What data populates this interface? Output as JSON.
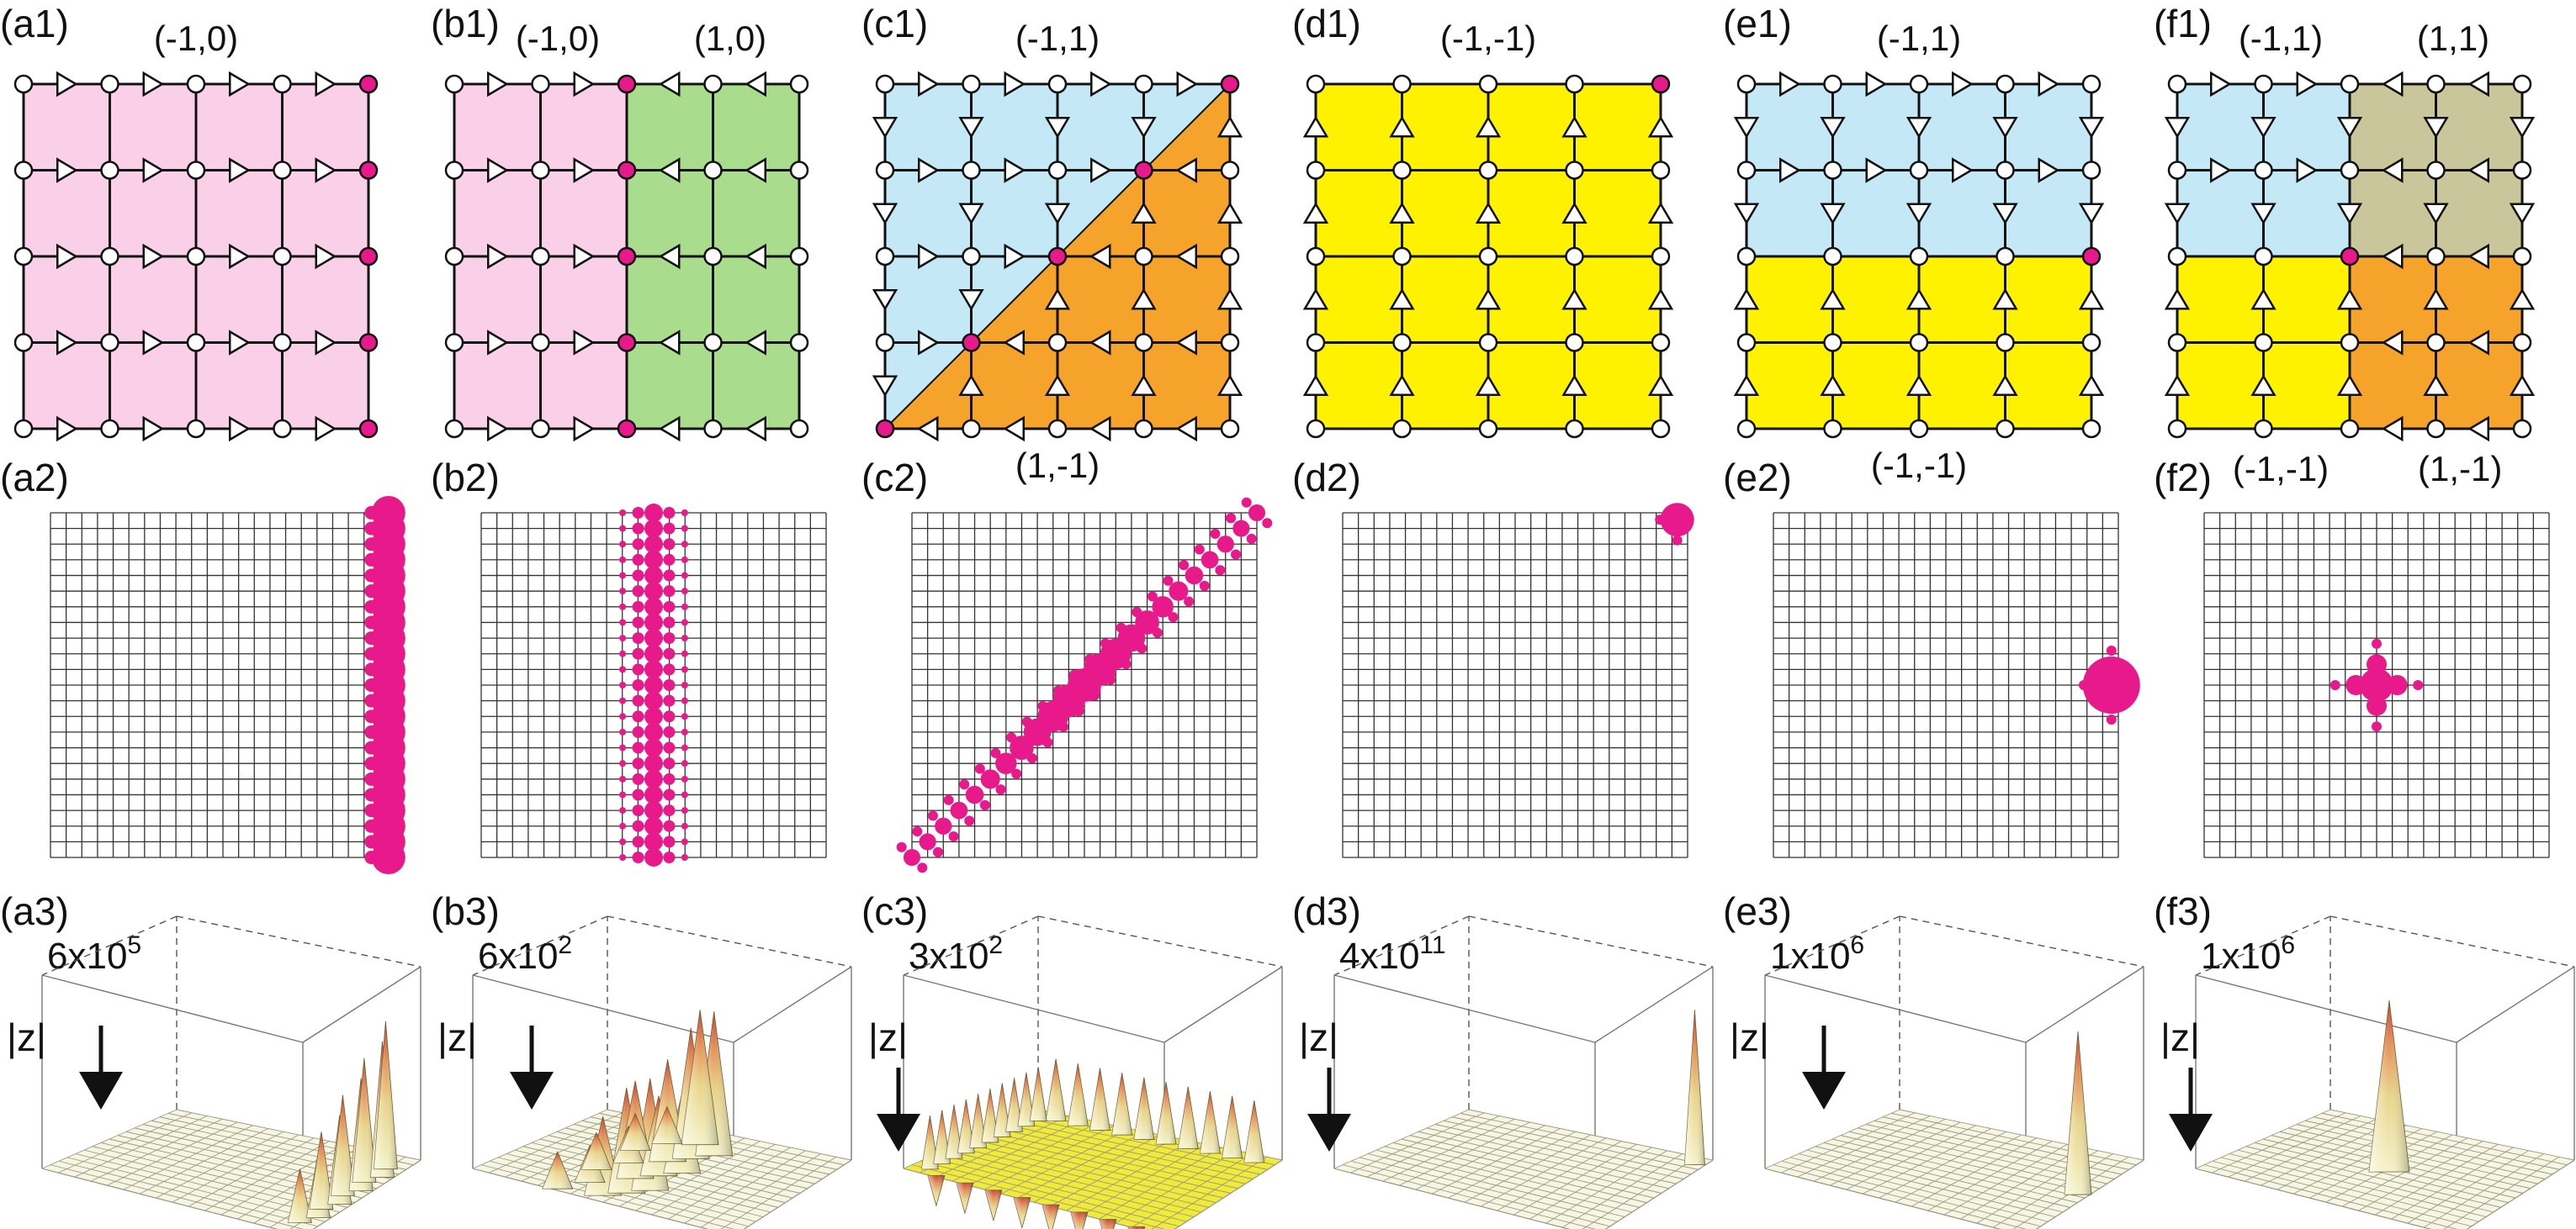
{
  "figure": {
    "columns": [
      {
        "id": "a",
        "row1": {
          "label": "(a1)",
          "regions": [
            {
              "label": "(-1,0)",
              "color": "#f9d0e8",
              "shape": "full",
              "label_pos": "top-center"
            }
          ],
          "flow": "right"
        },
        "row2": {
          "label": "(a2)",
          "state": "edge-right"
        },
        "row3": {
          "label": "(a3)",
          "magnitude": "6x10",
          "magnitude_exp": "5",
          "axis": "|z|",
          "surface": "ridge-right"
        }
      },
      {
        "id": "b",
        "row1": {
          "label": "(b1)",
          "regions": [
            {
              "label": "(-1,0)",
              "color": "#f9d0e8",
              "shape": "left-half",
              "label_pos": "top-left"
            },
            {
              "label": "(1,0)",
              "color": "#a9dc8c",
              "shape": "right-half",
              "label_pos": "top-right"
            }
          ],
          "flow": "split-vertical"
        },
        "row2": {
          "label": "(b2)",
          "state": "interface-vertical"
        },
        "row3": {
          "label": "(b3)",
          "magnitude": "6x10",
          "magnitude_exp": "2",
          "axis": "|z|",
          "surface": "ridge-middle"
        }
      },
      {
        "id": "c",
        "row1": {
          "label": "(c1)",
          "regions": [
            {
              "label": "(-1,1)",
              "color": "#c4e8f5",
              "shape": "upper-left-triangle",
              "label_pos": "top-center"
            },
            {
              "label": "(1,-1)",
              "color": "#f5a32a",
              "shape": "lower-right-triangle",
              "label_pos": "bottom-center"
            }
          ],
          "flow": "split-diagonal"
        },
        "row2": {
          "label": "(c2)",
          "state": "interface-diagonal"
        },
        "row3": {
          "label": "(c3)",
          "magnitude": "3x10",
          "magnitude_exp": "2",
          "axis": "|z|",
          "surface": "plateau-spiky"
        }
      },
      {
        "id": "d",
        "row1": {
          "label": "(d1)",
          "regions": [
            {
              "label": "(-1,-1)",
              "color": "#fff200",
              "shape": "full",
              "label_pos": "top-center"
            }
          ],
          "flow": "up"
        },
        "row2": {
          "label": "(d2)",
          "state": "corner"
        },
        "row3": {
          "label": "(d3)",
          "magnitude": "4x10",
          "magnitude_exp": "11",
          "axis": "|z|",
          "surface": "peak-corner"
        }
      },
      {
        "id": "e",
        "row1": {
          "label": "(e1)",
          "regions": [
            {
              "label": "(-1,1)",
              "color": "#c4e8f5",
              "shape": "top-half",
              "label_pos": "top-center"
            },
            {
              "label": "(-1,-1)",
              "color": "#fff200",
              "shape": "bottom-half",
              "label_pos": "bottom-center"
            }
          ],
          "flow": "split-horizontal"
        },
        "row2": {
          "label": "(e2)",
          "state": "edge-point"
        },
        "row3": {
          "label": "(e3)",
          "magnitude": "1x10",
          "magnitude_exp": "6",
          "axis": "|z|",
          "surface": "peak-edge"
        }
      },
      {
        "id": "f",
        "row1": {
          "label": "(f1)",
          "regions": [
            {
              "label": "(-1,1)",
              "color": "#c4e8f5",
              "shape": "top-left-quad",
              "label_pos": "top-left"
            },
            {
              "label": "(1,1)",
              "color": "#c8c69a",
              "shape": "top-right-quad",
              "label_pos": "top-right"
            },
            {
              "label": "(-1,-1)",
              "color": "#fff200",
              "shape": "bottom-left-quad",
              "label_pos": "bottom-left"
            },
            {
              "label": "(1,-1)",
              "color": "#f5a32a",
              "shape": "bottom-right-quad",
              "label_pos": "bottom-right"
            }
          ],
          "flow": "quadrants"
        },
        "row2": {
          "label": "(f2)",
          "state": "center-cross"
        },
        "row3": {
          "label": "(f3)",
          "magnitude": "1x10",
          "magnitude_exp": "6",
          "axis": "|z|",
          "surface": "peak-center"
        }
      }
    ],
    "colors": {
      "mode_marker": "#e8198b",
      "node_open": "#ffffff",
      "edge": "#111111",
      "grid": "#333333",
      "surface_low": "#f4f2c8",
      "surface_high": "#d05a40"
    }
  }
}
